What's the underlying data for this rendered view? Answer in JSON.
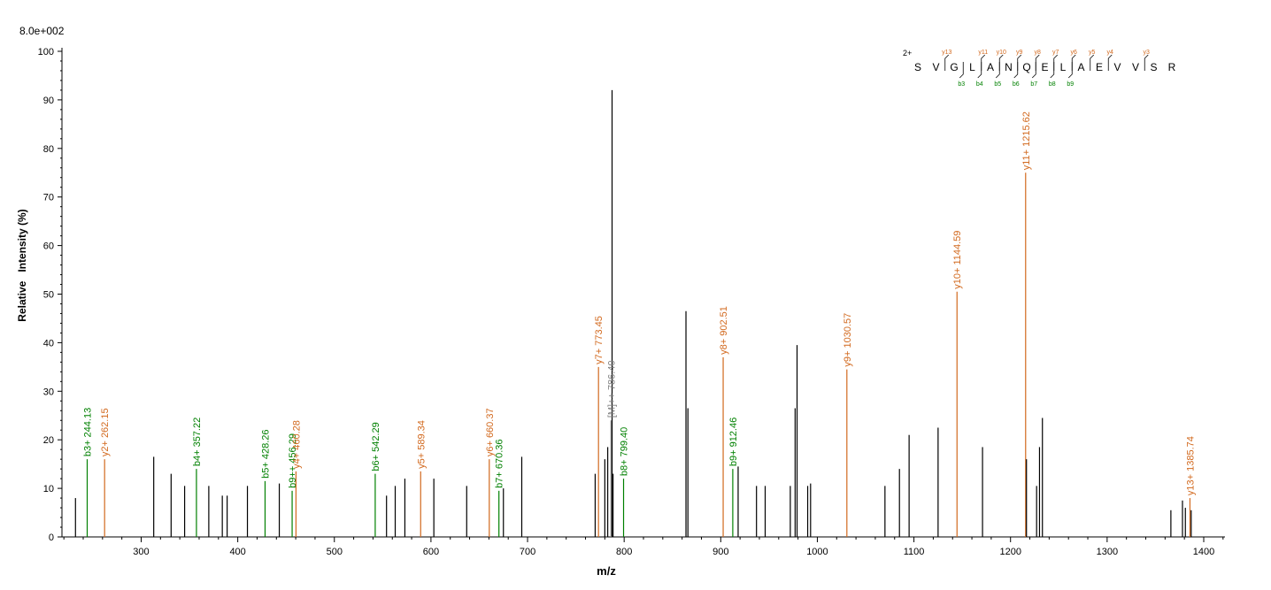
{
  "chart_data": {
    "type": "bar",
    "title": "",
    "scale_label": "8.0e+002",
    "xlabel": "m/z",
    "ylabel": "Relative   Intensity (%)",
    "xlim": [
      218,
      1422
    ],
    "ylim": [
      0,
      100
    ],
    "x_ticks": [
      300,
      400,
      500,
      600,
      700,
      800,
      900,
      1000,
      1100,
      1200,
      1300,
      1400
    ],
    "y_ticks": [
      0,
      10,
      20,
      30,
      40,
      50,
      60,
      70,
      80,
      90,
      100
    ],
    "colors": {
      "b": "#008000",
      "y": "#d2691e",
      "precursor": "#808080",
      "other": "#000000"
    },
    "peaks": [
      {
        "x": 232,
        "y": 8,
        "type": "other"
      },
      {
        "x": 244.13,
        "y": 16,
        "type": "b",
        "label": "b3+ 244.13"
      },
      {
        "x": 262.15,
        "y": 16,
        "type": "y",
        "label": "y2+ 262.15"
      },
      {
        "x": 313,
        "y": 16.5,
        "type": "other"
      },
      {
        "x": 331,
        "y": 13,
        "type": "other"
      },
      {
        "x": 345,
        "y": 10.5,
        "type": "other"
      },
      {
        "x": 357.22,
        "y": 14,
        "type": "b",
        "label": "b4+ 357.22"
      },
      {
        "x": 370,
        "y": 10.5,
        "type": "other"
      },
      {
        "x": 384,
        "y": 8.5,
        "type": "other"
      },
      {
        "x": 389,
        "y": 8.5,
        "type": "other"
      },
      {
        "x": 410,
        "y": 10.5,
        "type": "other"
      },
      {
        "x": 428.26,
        "y": 11.5,
        "type": "b",
        "label": "b5+ 428.26"
      },
      {
        "x": 443,
        "y": 11,
        "type": "other"
      },
      {
        "x": 456.29,
        "y": 9.5,
        "type": "b",
        "label": "b9++ 456.29"
      },
      {
        "x": 460.28,
        "y": 13.5,
        "type": "y",
        "label": "y4+ 460.28"
      },
      {
        "x": 542.29,
        "y": 13,
        "type": "b",
        "label": "b6+ 542.29"
      },
      {
        "x": 554,
        "y": 8.5,
        "type": "other"
      },
      {
        "x": 563,
        "y": 10.5,
        "type": "other"
      },
      {
        "x": 573,
        "y": 12,
        "type": "other"
      },
      {
        "x": 589.34,
        "y": 13.5,
        "type": "y",
        "label": "y5+ 589.34"
      },
      {
        "x": 603,
        "y": 12,
        "type": "other"
      },
      {
        "x": 637,
        "y": 10.5,
        "type": "other"
      },
      {
        "x": 660.37,
        "y": 16,
        "type": "y",
        "label": "y6+ 660.37"
      },
      {
        "x": 670.36,
        "y": 9.5,
        "type": "b",
        "label": "b7+ 670.36"
      },
      {
        "x": 675,
        "y": 10,
        "type": "other"
      },
      {
        "x": 694,
        "y": 16.5,
        "type": "other"
      },
      {
        "x": 770,
        "y": 13,
        "type": "other"
      },
      {
        "x": 773.45,
        "y": 35,
        "type": "y",
        "label": "y7+ 773.45"
      },
      {
        "x": 780,
        "y": 16,
        "type": "other"
      },
      {
        "x": 783,
        "y": 18.5,
        "type": "other"
      },
      {
        "x": 786.4,
        "y": 24,
        "type": "precursor",
        "label": "[M]++ 786.40"
      },
      {
        "x": 787.5,
        "y": 92,
        "type": "other"
      },
      {
        "x": 788.5,
        "y": 13,
        "type": "other"
      },
      {
        "x": 799.4,
        "y": 12,
        "type": "b",
        "label": "b8+ 799.40"
      },
      {
        "x": 864,
        "y": 46.5,
        "type": "other"
      },
      {
        "x": 866,
        "y": 26.5,
        "type": "other"
      },
      {
        "x": 902.51,
        "y": 37,
        "type": "y",
        "label": "y8+ 902.51"
      },
      {
        "x": 912.46,
        "y": 14,
        "type": "b",
        "label": "b9+ 912.46"
      },
      {
        "x": 918,
        "y": 14.5,
        "type": "other"
      },
      {
        "x": 937,
        "y": 10.5,
        "type": "other"
      },
      {
        "x": 946,
        "y": 10.5,
        "type": "other"
      },
      {
        "x": 972,
        "y": 10.5,
        "type": "other"
      },
      {
        "x": 977,
        "y": 26.5,
        "type": "other"
      },
      {
        "x": 979,
        "y": 39.5,
        "type": "other"
      },
      {
        "x": 990,
        "y": 10.5,
        "type": "other"
      },
      {
        "x": 993,
        "y": 11,
        "type": "other"
      },
      {
        "x": 1030.57,
        "y": 34.5,
        "type": "y",
        "label": "y9+ 1030.57"
      },
      {
        "x": 1070,
        "y": 10.5,
        "type": "other"
      },
      {
        "x": 1085,
        "y": 14,
        "type": "other"
      },
      {
        "x": 1095,
        "y": 21,
        "type": "other"
      },
      {
        "x": 1125,
        "y": 22.5,
        "type": "other"
      },
      {
        "x": 1144.59,
        "y": 50.5,
        "type": "y",
        "label": "y10+ 1144.59"
      },
      {
        "x": 1171,
        "y": 18.5,
        "type": "other"
      },
      {
        "x": 1215.62,
        "y": 75,
        "type": "y",
        "label": "y11+ 1215.62"
      },
      {
        "x": 1216.5,
        "y": 16,
        "type": "other"
      },
      {
        "x": 1227,
        "y": 10.5,
        "type": "other"
      },
      {
        "x": 1230,
        "y": 18.5,
        "type": "other"
      },
      {
        "x": 1233,
        "y": 24.5,
        "type": "other"
      },
      {
        "x": 1366,
        "y": 5.5,
        "type": "other"
      },
      {
        "x": 1378,
        "y": 7.5,
        "type": "other"
      },
      {
        "x": 1381,
        "y": 6,
        "type": "other"
      },
      {
        "x": 1385.74,
        "y": 8,
        "type": "y",
        "label": "y13+ 1385.74"
      },
      {
        "x": 1387,
        "y": 5.5,
        "type": "other"
      }
    ]
  },
  "sequence": {
    "charge": "2+",
    "residues": [
      "S",
      "V",
      "G",
      "L",
      "A",
      "N",
      "Q",
      "E",
      "L",
      "A",
      "E",
      "V",
      "V",
      "S",
      "R"
    ],
    "y_ions": [
      "y13",
      "y11",
      "y10",
      "y9",
      "y8",
      "y7",
      "y6",
      "y5",
      "y4",
      "y3"
    ],
    "b_ions": [
      "b3",
      "b4",
      "b5",
      "b6",
      "b7",
      "b8",
      "b9"
    ]
  }
}
